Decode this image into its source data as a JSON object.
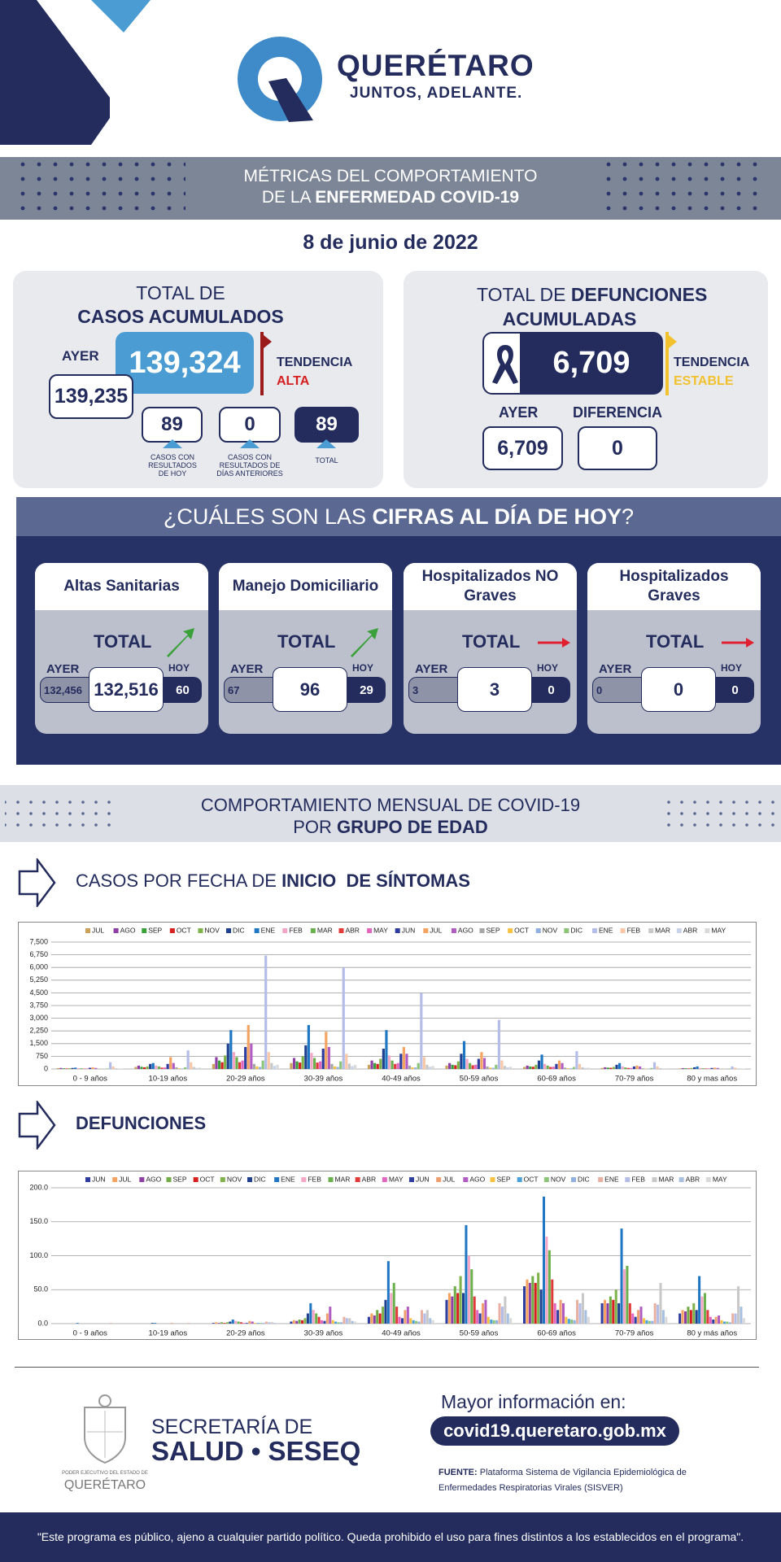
{
  "header": {
    "title": "QUERÉTARO",
    "tagline": "JUNTOS, ADELANTE."
  },
  "banner": {
    "line1": "MÉTRICAS DEL COMPORTAMIENTO",
    "line2": "DE LA ",
    "line2_bold": "ENFERMEDAD COVID-19"
  },
  "date": "8 de junio de 2022",
  "cases": {
    "title": "TOTAL DE",
    "title_bold": "CASOS ACUMULADOS",
    "total": "139,324",
    "ayer_label": "AYER",
    "ayer": "139,235",
    "tendencia": "TENDENCIA",
    "trend": "ALTA",
    "hoy": "89",
    "hoy_label": "CASOS CON RESULTADOS DE HOY",
    "anteriores": "0",
    "anteriores_label": "CASOS CON RESULTADOS DE DÍAS ANTERIORES",
    "total_hoy": "89",
    "total_label": "TOTAL"
  },
  "deaths": {
    "title": "TOTAL DE ",
    "title_bold": "DEFUNCIONES ACUMULADAS",
    "total": "6,709",
    "tendencia": "TENDENCIA",
    "trend": "ESTABLE",
    "ayer_label": "AYER",
    "ayer": "6,709",
    "diff_label": "DIFERENCIA",
    "diff": "0"
  },
  "today": {
    "heading": "¿CUÁLES SON LAS ",
    "heading_bold": "CIFRAS AL DÍA DE HOY",
    "heading_end": "?",
    "cards": [
      {
        "title": "Altas Sanitarias",
        "total_label": "TOTAL",
        "ayer_label": "AYER",
        "ayer": "132,456",
        "value": "132,516",
        "hoy_label": "HOY",
        "hoy": "60"
      },
      {
        "title": "Manejo Domiciliario",
        "total_label": "TOTAL",
        "ayer_label": "AYER",
        "ayer": "67",
        "value": "96",
        "hoy_label": "HOY",
        "hoy": "29"
      },
      {
        "title": "Hospitalizados NO Graves",
        "total_label": "TOTAL",
        "ayer_label": "AYER",
        "ayer": "3",
        "value": "3",
        "hoy_label": "HOY",
        "hoy": "0"
      },
      {
        "title": "Hospitalizados Graves",
        "total_label": "TOTAL",
        "ayer_label": "AYER",
        "ayer": "0",
        "value": "0",
        "hoy_label": "HOY",
        "hoy": "0"
      }
    ]
  },
  "monthly": {
    "line1": "COMPORTAMIENTO MENSUAL DE COVID-19",
    "line2": "POR ",
    "line2_bold": "GRUPO DE EDAD"
  },
  "chart_headings": [
    {
      "text": "CASOS POR FECHA DE ",
      "bold": "INICIO  DE SÍNTOMAS"
    },
    {
      "bold": "DEFUNCIONES"
    }
  ],
  "chart_data": [
    {
      "type": "bar",
      "grid": true,
      "ylim": [
        0,
        7500
      ],
      "yticks": [
        0,
        750,
        {
          "value": 1500,
          "label": "1,500"
        },
        {
          "value": 2250,
          "label": "2,250"
        },
        {
          "value": 3000,
          "label": "3,000"
        },
        {
          "value": 3750,
          "label": "3,750"
        },
        {
          "value": 4500,
          "label": "4,500"
        },
        {
          "value": 5250,
          "label": "5,250"
        },
        {
          "value": 6000,
          "label": "6,000"
        },
        {
          "value": 6750,
          "label": "6,750"
        },
        {
          "value": 7500,
          "label": "7,500"
        }
      ],
      "categories": [
        "0 - 9 años",
        "10-19 años",
        "20-29 años",
        "30-39 años",
        "40-49 años",
        "50-59 años",
        "60-69 años",
        "70-79 años",
        "80 y mas años"
      ],
      "series": [
        {
          "name": "JUL",
          "color": "#c9a15a",
          "values": [
            50,
            120,
            300,
            350,
            250,
            200,
            120,
            60,
            30
          ]
        },
        {
          "name": "AGO",
          "color": "#8e3fa3",
          "values": [
            60,
            200,
            700,
            650,
            500,
            350,
            200,
            100,
            50
          ]
        },
        {
          "name": "SEP",
          "color": "#3aa13a",
          "values": [
            40,
            130,
            500,
            450,
            350,
            250,
            150,
            80,
            40
          ]
        },
        {
          "name": "OCT",
          "color": "#d62020",
          "values": [
            30,
            100,
            400,
            380,
            300,
            220,
            130,
            70,
            30
          ]
        },
        {
          "name": "NOV",
          "color": "#7fb24a",
          "values": [
            40,
            150,
            800,
            750,
            600,
            450,
            250,
            120,
            60
          ]
        },
        {
          "name": "DIC",
          "color": "#1f3f8f",
          "values": [
            60,
            300,
            1500,
            1400,
            1200,
            900,
            500,
            250,
            100
          ]
        },
        {
          "name": "ENE",
          "color": "#1f77c4",
          "values": [
            80,
            350,
            2300,
            2600,
            2300,
            1650,
            850,
            350,
            150
          ]
        },
        {
          "name": "FEB",
          "color": "#f4a6c6",
          "values": [
            50,
            200,
            1000,
            950,
            800,
            600,
            300,
            150,
            60
          ]
        },
        {
          "name": "MAR",
          "color": "#6ab04c",
          "values": [
            40,
            150,
            700,
            650,
            500,
            350,
            200,
            90,
            40
          ]
        },
        {
          "name": "ABR",
          "color": "#e03a3a",
          "values": [
            20,
            80,
            400,
            380,
            300,
            220,
            120,
            60,
            30
          ]
        },
        {
          "name": "MAY",
          "color": "#e066c0",
          "values": [
            30,
            90,
            500,
            450,
            350,
            250,
            130,
            60,
            30
          ]
        },
        {
          "name": "JUN",
          "color": "#2e3c9e",
          "values": [
            70,
            300,
            1300,
            1200,
            900,
            600,
            300,
            150,
            60
          ]
        },
        {
          "name": "JUL",
          "color": "#f4a460",
          "values": [
            100,
            700,
            2600,
            2200,
            1300,
            1000,
            500,
            200,
            80
          ]
        },
        {
          "name": "AGO",
          "color": "#b05cc0",
          "values": [
            60,
            350,
            1500,
            1300,
            900,
            650,
            350,
            150,
            60
          ]
        },
        {
          "name": "SEP",
          "color": "#a6a6a6",
          "values": [
            20,
            100,
            300,
            300,
            200,
            150,
            80,
            40,
            20
          ]
        },
        {
          "name": "OCT",
          "color": "#f5c242",
          "values": [
            10,
            40,
            150,
            150,
            100,
            80,
            40,
            20,
            10
          ]
        },
        {
          "name": "NOV",
          "color": "#8fb0e0",
          "values": [
            10,
            30,
            120,
            120,
            90,
            70,
            40,
            20,
            10
          ]
        },
        {
          "name": "DIC",
          "color": "#8cc47a",
          "values": [
            30,
            100,
            500,
            450,
            350,
            250,
            120,
            60,
            30
          ]
        },
        {
          "name": "ENE",
          "color": "#b4bce8",
          "values": [
            400,
            1100,
            6700,
            6000,
            4500,
            2900,
            1050,
            400,
            150
          ]
        },
        {
          "name": "FEB",
          "color": "#f8c8a8",
          "values": [
            150,
            400,
            1000,
            900,
            700,
            500,
            300,
            150,
            80
          ]
        },
        {
          "name": "MAR",
          "color": "#c8c8c8",
          "values": [
            40,
            120,
            350,
            320,
            250,
            180,
            100,
            50,
            30
          ]
        },
        {
          "name": "ABR",
          "color": "#c8d2e8",
          "values": [
            20,
            60,
            180,
            170,
            130,
            100,
            60,
            30,
            20
          ]
        },
        {
          "name": "MAY",
          "color": "#d9d9d9",
          "values": [
            30,
            80,
            250,
            240,
            180,
            130,
            80,
            40,
            25
          ]
        }
      ]
    },
    {
      "type": "bar",
      "grid": true,
      "ylim": [
        0,
        200
      ],
      "yticks": [
        {
          "value": 0,
          "label": "0.0"
        },
        {
          "value": 50,
          "label": "50.0"
        },
        {
          "value": 100,
          "label": "100.0"
        },
        {
          "value": 150,
          "label": "150.0"
        },
        {
          "value": 200,
          "label": "200.0"
        }
      ],
      "categories": [
        "0 - 9 años",
        "10-19 años",
        "20-29 años",
        "30-39 años",
        "40-49 años",
        "50-59 años",
        "60-69 años",
        "70-79 años",
        "80 y más años"
      ],
      "series": [
        {
          "name": "JUN",
          "color": "#2e3c9e",
          "values": [
            0,
            0,
            1,
            3,
            10,
            35,
            55,
            30,
            15
          ]
        },
        {
          "name": "JUL",
          "color": "#f4a460",
          "values": [
            0,
            0,
            2,
            5,
            15,
            45,
            65,
            35,
            20
          ]
        },
        {
          "name": "AGO",
          "color": "#8e3fa3",
          "values": [
            0,
            0,
            1,
            4,
            12,
            40,
            60,
            30,
            18
          ]
        },
        {
          "name": "SEP",
          "color": "#70ad47",
          "values": [
            0,
            0,
            2,
            6,
            20,
            55,
            70,
            40,
            25
          ]
        },
        {
          "name": "OCT",
          "color": "#d62020",
          "values": [
            0,
            0,
            1,
            5,
            15,
            45,
            60,
            35,
            20
          ]
        },
        {
          "name": "NOV",
          "color": "#7fb24a",
          "values": [
            0,
            0,
            2,
            8,
            25,
            70,
            75,
            50,
            30
          ]
        },
        {
          "name": "DIC",
          "color": "#1f3f8f",
          "values": [
            0,
            1,
            3,
            15,
            35,
            45,
            50,
            30,
            20
          ]
        },
        {
          "name": "ENE",
          "color": "#1f77c4",
          "values": [
            1,
            1,
            6,
            30,
            92,
            145,
            187,
            140,
            70
          ]
        },
        {
          "name": "FEB",
          "color": "#f4a6c6",
          "values": [
            0,
            0,
            4,
            20,
            45,
            100,
            128,
            80,
            40
          ]
        },
        {
          "name": "MAR",
          "color": "#6ab04c",
          "values": [
            0,
            0,
            3,
            15,
            60,
            80,
            108,
            85,
            45
          ]
        },
        {
          "name": "ABR",
          "color": "#e03a3a",
          "values": [
            0,
            0,
            2,
            10,
            25,
            40,
            65,
            30,
            20
          ]
        },
        {
          "name": "MAY",
          "color": "#e066c0",
          "values": [
            0,
            0,
            1,
            5,
            10,
            20,
            30,
            15,
            10
          ]
        },
        {
          "name": "JUN",
          "color": "#3040a0",
          "values": [
            0,
            0,
            1,
            4,
            8,
            15,
            20,
            10,
            6
          ]
        },
        {
          "name": "JUL",
          "color": "#f0a070",
          "values": [
            0,
            1,
            4,
            15,
            20,
            30,
            35,
            20,
            10
          ]
        },
        {
          "name": "AGO",
          "color": "#b05cc0",
          "values": [
            0,
            0,
            3,
            25,
            25,
            35,
            30,
            25,
            12
          ]
        },
        {
          "name": "SEP",
          "color": "#f5c242",
          "values": [
            0,
            0,
            1,
            5,
            8,
            10,
            10,
            8,
            5
          ]
        },
        {
          "name": "OCT",
          "color": "#4aa0d8",
          "values": [
            0,
            0,
            1,
            3,
            5,
            6,
            7,
            5,
            3
          ]
        },
        {
          "name": "NOV",
          "color": "#8cc47a",
          "values": [
            0,
            0,
            1,
            2,
            4,
            5,
            6,
            4,
            3
          ]
        },
        {
          "name": "DIC",
          "color": "#8fb0e0",
          "values": [
            0,
            0,
            1,
            2,
            3,
            5,
            5,
            4,
            2
          ]
        },
        {
          "name": "ENE",
          "color": "#e8b0a0",
          "values": [
            1,
            1,
            3,
            10,
            20,
            30,
            35,
            30,
            15
          ]
        },
        {
          "name": "FEB",
          "color": "#b4bce8",
          "values": [
            0,
            0,
            2,
            8,
            15,
            25,
            30,
            28,
            15
          ]
        },
        {
          "name": "MAR",
          "color": "#c8c8c8",
          "values": [
            0,
            0,
            2,
            8,
            20,
            40,
            45,
            60,
            55
          ]
        },
        {
          "name": "ABR",
          "color": "#a8c0e0",
          "values": [
            0,
            0,
            1,
            4,
            8,
            15,
            20,
            20,
            25
          ]
        },
        {
          "name": "MAY",
          "color": "#d9d9d9",
          "values": [
            0,
            0,
            1,
            3,
            5,
            8,
            10,
            10,
            8
          ]
        }
      ]
    }
  ],
  "footer": {
    "secretaria": "SECRETARÍA DE",
    "salud": "SALUD • SESEQ",
    "poder": "PODER EJECUTIVO DEL ESTADO DE",
    "estado": "QUERÉTARO",
    "info": "Mayor información en:",
    "url": "covid19.queretaro.gob.mx",
    "fuente_label": "FUENTE:",
    "fuente": "Plataforma Sistema  de Vigilancia Epidemiológica de Enfermedades Respiratorias Virales (SISVER)",
    "disclaimer": "\"Este programa es público, ajeno a cualquier partido político. Queda prohibido el uso para fines distintos a los establecidos en el programa\"."
  }
}
